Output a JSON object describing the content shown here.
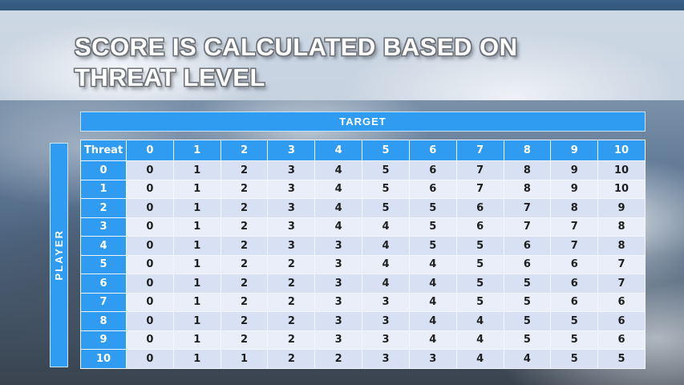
{
  "title": {
    "text": "SCORE IS CALCULATED BASED ON THREAT LEVEL"
  },
  "table": {
    "target_label": "TARGET",
    "player_label": "PLAYER",
    "corner_label": "Threat",
    "column_headers": [
      "0",
      "1",
      "2",
      "3",
      "4",
      "5",
      "6",
      "7",
      "8",
      "9",
      "10"
    ],
    "rows": [
      {
        "threat": "0",
        "values": [
          0,
          1,
          2,
          3,
          4,
          5,
          6,
          7,
          8,
          9,
          10
        ]
      },
      {
        "threat": "1",
        "values": [
          0,
          1,
          2,
          3,
          4,
          5,
          6,
          7,
          8,
          9,
          10
        ]
      },
      {
        "threat": "2",
        "values": [
          0,
          1,
          2,
          3,
          4,
          5,
          5,
          6,
          7,
          8,
          9
        ]
      },
      {
        "threat": "3",
        "values": [
          0,
          1,
          2,
          3,
          4,
          4,
          5,
          6,
          7,
          7,
          8
        ]
      },
      {
        "threat": "4",
        "values": [
          0,
          1,
          2,
          3,
          3,
          4,
          5,
          5,
          6,
          7,
          8
        ]
      },
      {
        "threat": "5",
        "values": [
          0,
          1,
          2,
          2,
          3,
          4,
          4,
          5,
          6,
          6,
          7
        ]
      },
      {
        "threat": "6",
        "values": [
          0,
          1,
          2,
          2,
          3,
          4,
          4,
          5,
          5,
          6,
          7
        ]
      },
      {
        "threat": "7",
        "values": [
          0,
          1,
          2,
          2,
          3,
          3,
          4,
          5,
          5,
          6,
          6
        ]
      },
      {
        "threat": "8",
        "values": [
          0,
          1,
          2,
          2,
          3,
          3,
          4,
          4,
          5,
          5,
          6
        ]
      },
      {
        "threat": "9",
        "values": [
          0,
          1,
          2,
          2,
          3,
          3,
          4,
          4,
          5,
          5,
          6
        ]
      },
      {
        "threat": "10",
        "values": [
          0,
          1,
          1,
          2,
          2,
          3,
          3,
          4,
          4,
          5,
          5
        ]
      }
    ]
  },
  "colors": {
    "accent_blue": "#2f9bf1",
    "row_even": "#d7e1f3",
    "row_odd": "#e9eef9",
    "cell_text": "#1f1f1f",
    "top_strip": "#35597b",
    "title_band": "#cad5e2",
    "title_text": "#ffffff"
  }
}
